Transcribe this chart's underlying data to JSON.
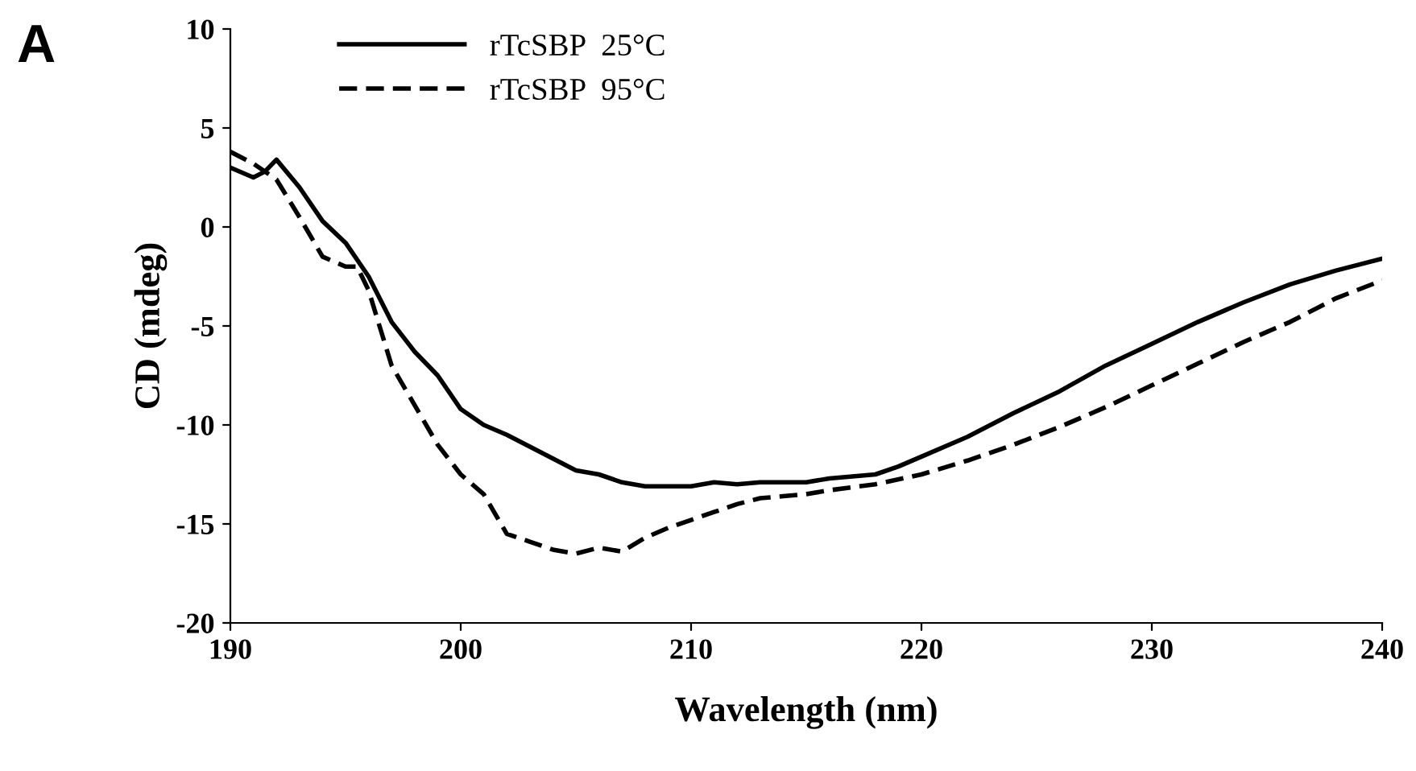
{
  "chart_data": {
    "type": "line",
    "xlabel": "Wavelength (nm)",
    "ylabel": "CD (mdeg)",
    "annotations": [
      "A"
    ],
    "xlim": [
      190,
      240
    ],
    "xticks": [
      190,
      200,
      210,
      220,
      230,
      240
    ],
    "ylim": [
      -20,
      10
    ],
    "yticks": [
      -20,
      -15,
      -10,
      -5,
      0,
      5,
      10
    ],
    "grid": false,
    "legend": "top left",
    "marker": "none",
    "series": [
      {
        "name": "rTcSBP  25°C",
        "color": "#000000",
        "line_style": "solid",
        "x": [
          190,
          191,
          191.5,
          192,
          193,
          194,
          195,
          196,
          197,
          198,
          199,
          200,
          201,
          202,
          203,
          204,
          205,
          206,
          207,
          208,
          209,
          210,
          211,
          212,
          213,
          214,
          215,
          216,
          217,
          218,
          219,
          220,
          222,
          224,
          226,
          228,
          230,
          232,
          234,
          236,
          238,
          240
        ],
        "values": [
          3.0,
          2.5,
          2.8,
          3.4,
          2.0,
          0.3,
          -0.8,
          -2.5,
          -4.8,
          -6.3,
          -7.5,
          -9.2,
          -10.0,
          -10.5,
          -11.1,
          -11.7,
          -12.3,
          -12.5,
          -12.9,
          -13.1,
          -13.1,
          -13.1,
          -12.9,
          -13.0,
          -12.9,
          -12.9,
          -12.9,
          -12.7,
          -12.6,
          -12.5,
          -12.1,
          -11.6,
          -10.6,
          -9.4,
          -8.3,
          -7.0,
          -5.9,
          -4.8,
          -3.8,
          -2.9,
          -2.2,
          -1.6
        ]
      },
      {
        "name": "rTcSBP  95°C",
        "color": "#000000",
        "line_style": "dashed",
        "x": [
          190,
          191,
          192,
          193,
          194,
          195,
          195.5,
          196,
          197,
          198,
          199,
          200,
          201,
          202,
          203,
          204,
          205,
          206,
          207,
          208,
          209,
          210,
          211,
          212,
          213,
          214,
          215,
          216,
          218,
          220,
          222,
          224,
          226,
          228,
          230,
          232,
          234,
          236,
          238,
          240
        ],
        "values": [
          3.8,
          3.2,
          2.4,
          0.5,
          -1.5,
          -2.0,
          -2.0,
          -3.2,
          -7.0,
          -9.0,
          -11.0,
          -12.5,
          -13.5,
          -15.5,
          -15.9,
          -16.3,
          -16.5,
          -16.2,
          -16.4,
          -15.7,
          -15.2,
          -14.8,
          -14.4,
          -14.0,
          -13.7,
          -13.6,
          -13.5,
          -13.3,
          -13.0,
          -12.5,
          -11.8,
          -11.0,
          -10.1,
          -9.1,
          -8.0,
          -6.9,
          -5.8,
          -4.8,
          -3.6,
          -2.7
        ]
      }
    ]
  }
}
